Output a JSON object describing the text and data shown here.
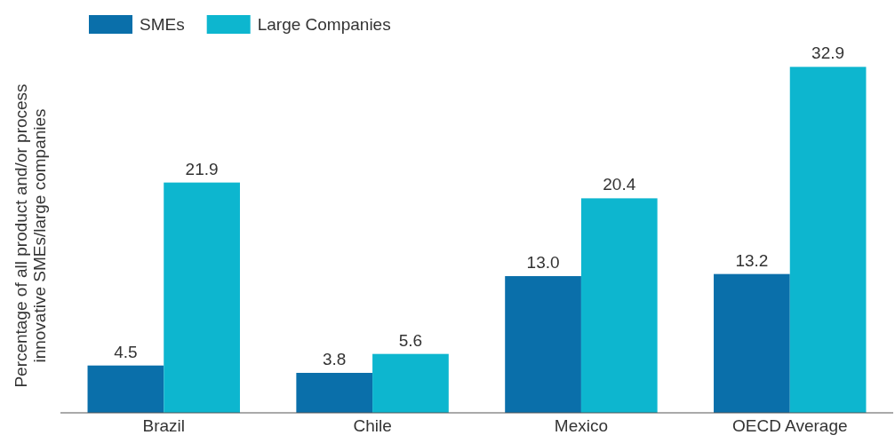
{
  "chart_data": {
    "type": "bar",
    "ylabel": "Percentage of all product and/or process innovative SMEs/large companies",
    "categories": [
      "Brazil",
      "Chile",
      "Mexico",
      "OECD Average"
    ],
    "series": [
      {
        "name": "SMEs",
        "color": "#0a6faa",
        "values": [
          4.5,
          3.8,
          13.0,
          13.2
        ],
        "value_labels": [
          "4.5",
          "3.8",
          "13.0",
          "13.2"
        ]
      },
      {
        "name": "Large Companies",
        "color": "#0db6cf",
        "values": [
          21.9,
          5.6,
          20.4,
          32.9
        ],
        "value_labels": [
          "21.9",
          "5.6",
          "20.4",
          "32.9"
        ]
      }
    ],
    "legend": "top left"
  }
}
